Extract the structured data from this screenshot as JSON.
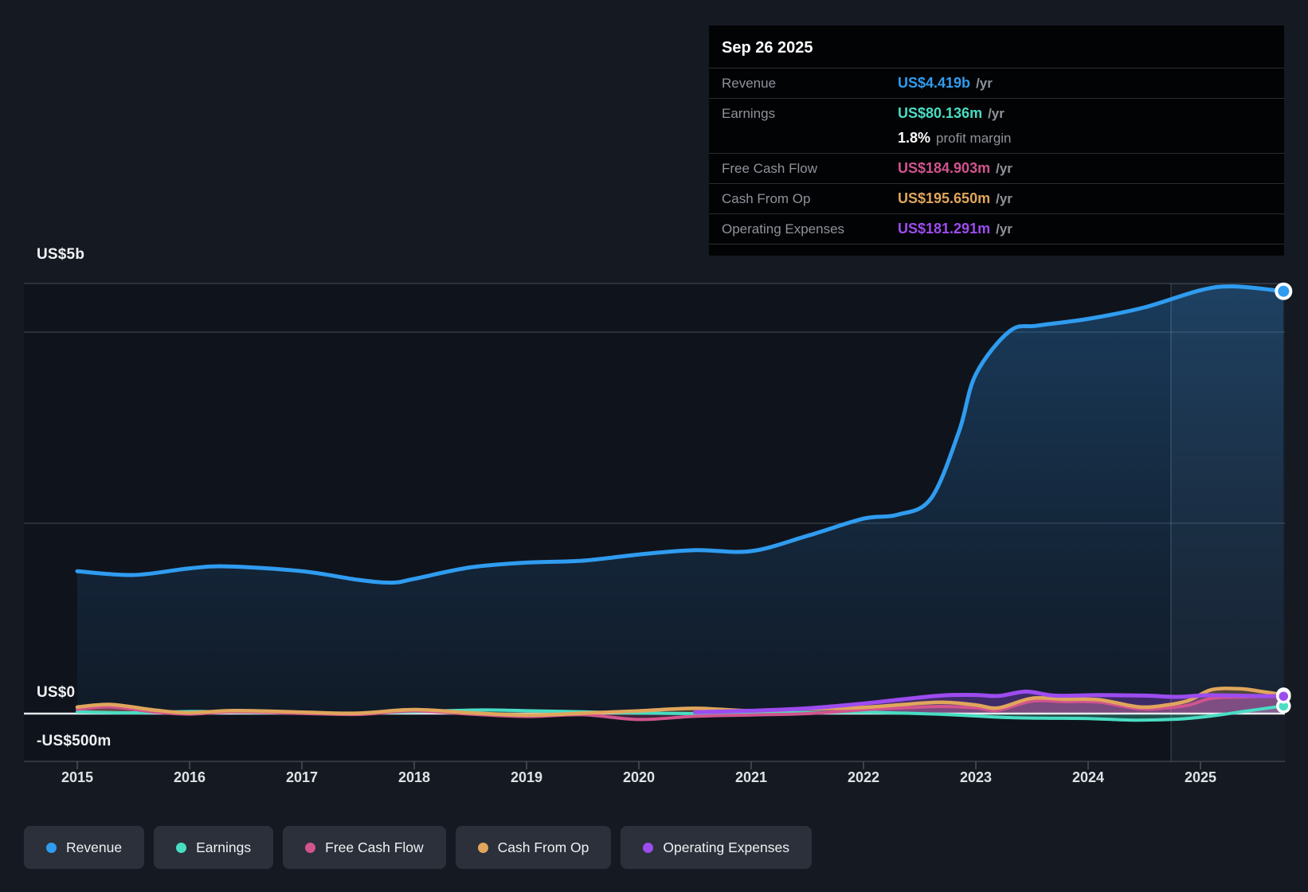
{
  "axis": {
    "y_labels": [
      "US$5b",
      "US$0",
      "-US$500m"
    ],
    "x_labels": [
      "2015",
      "2016",
      "2017",
      "2018",
      "2019",
      "2020",
      "2021",
      "2022",
      "2023",
      "2024",
      "2025"
    ]
  },
  "tooltip": {
    "date": "Sep 26 2025",
    "rows": [
      {
        "label": "Revenue",
        "value": "US$4.419b",
        "suffix": "/yr",
        "color": "#2f9cf0"
      },
      {
        "label": "Earnings",
        "value": "US$80.136m",
        "suffix": "/yr",
        "color": "#49ddc3"
      },
      {
        "label": "",
        "value": "1.8%",
        "suffix": "profit margin",
        "color": "#ffffff"
      },
      {
        "label": "Free Cash Flow",
        "value": "US$184.903m",
        "suffix": "/yr",
        "color": "#d1548e"
      },
      {
        "label": "Cash From Op",
        "value": "US$195.650m",
        "suffix": "/yr",
        "color": "#e0a65c"
      },
      {
        "label": "Operating Expenses",
        "value": "US$181.291m",
        "suffix": "/yr",
        "color": "#9d4cf0"
      }
    ]
  },
  "legend": {
    "items": [
      {
        "label": "Revenue",
        "color": "#2f9cf0"
      },
      {
        "label": "Earnings",
        "color": "#49ddc3"
      },
      {
        "label": "Free Cash Flow",
        "color": "#d1548e"
      },
      {
        "label": "Cash From Op",
        "color": "#e0a65c"
      },
      {
        "label": "Operating Expenses",
        "color": "#9d4cf0"
      }
    ]
  },
  "chart_data": {
    "type": "area",
    "title": "Earnings and revenue history",
    "x_unit": "year",
    "y_unit": "US$ millions",
    "x_range": [
      2015,
      2025.74
    ],
    "y_axis_ticks": [
      "US$5b",
      "US$0",
      "-US$500m"
    ],
    "grid": true,
    "legend_position": "bottom",
    "highlight_band_start": 2024.74,
    "last_point_date": "Sep 26 2025",
    "series": [
      {
        "name": "Revenue",
        "color": "#2f9cf0",
        "values": [
          [
            2015,
            1490
          ],
          [
            2015.5,
            1450
          ],
          [
            2016,
            1520
          ],
          [
            2016.35,
            1540
          ],
          [
            2017,
            1490
          ],
          [
            2017.5,
            1400
          ],
          [
            2017.8,
            1370
          ],
          [
            2018,
            1410
          ],
          [
            2018.5,
            1530
          ],
          [
            2019,
            1580
          ],
          [
            2019.5,
            1600
          ],
          [
            2020,
            1665
          ],
          [
            2020.5,
            1710
          ],
          [
            2021,
            1700
          ],
          [
            2021.5,
            1860
          ],
          [
            2022,
            2040
          ],
          [
            2022.3,
            2080
          ],
          [
            2022.6,
            2250
          ],
          [
            2022.85,
            2950
          ],
          [
            2023,
            3550
          ],
          [
            2023.3,
            4000
          ],
          [
            2023.55,
            4060
          ],
          [
            2024,
            4130
          ],
          [
            2024.5,
            4250
          ],
          [
            2025,
            4430
          ],
          [
            2025.3,
            4470
          ],
          [
            2025.74,
            4419
          ]
        ]
      },
      {
        "name": "Earnings",
        "color": "#49ddc3",
        "values": [
          [
            2015,
            18
          ],
          [
            2015.5,
            8
          ],
          [
            2016,
            22
          ],
          [
            2016.5,
            15
          ],
          [
            2017,
            8
          ],
          [
            2017.5,
            4
          ],
          [
            2018,
            20
          ],
          [
            2018.6,
            38
          ],
          [
            2019,
            30
          ],
          [
            2019.5,
            18
          ],
          [
            2020,
            5
          ],
          [
            2020.5,
            0
          ],
          [
            2021,
            5
          ],
          [
            2021.5,
            10
          ],
          [
            2022,
            15
          ],
          [
            2022.5,
            0
          ],
          [
            2022.75,
            -10
          ],
          [
            2023,
            -25
          ],
          [
            2023.3,
            -42
          ],
          [
            2023.6,
            -48
          ],
          [
            2024,
            -52
          ],
          [
            2024.4,
            -68
          ],
          [
            2024.8,
            -58
          ],
          [
            2025.1,
            -25
          ],
          [
            2025.4,
            25
          ],
          [
            2025.74,
            80.136
          ]
        ]
      },
      {
        "name": "Free Cash Flow",
        "color": "#d1548e",
        "values": [
          [
            2015,
            45
          ],
          [
            2015.3,
            70
          ],
          [
            2015.7,
            15
          ],
          [
            2016,
            -5
          ],
          [
            2016.4,
            18
          ],
          [
            2017,
            2
          ],
          [
            2017.5,
            -8
          ],
          [
            2018,
            28
          ],
          [
            2018.5,
            -5
          ],
          [
            2019,
            -30
          ],
          [
            2019.5,
            -12
          ],
          [
            2020,
            -62
          ],
          [
            2020.5,
            -28
          ],
          [
            2021,
            -15
          ],
          [
            2021.5,
            0
          ],
          [
            2022,
            40
          ],
          [
            2022.35,
            60
          ],
          [
            2022.7,
            75
          ],
          [
            2023,
            60
          ],
          [
            2023.2,
            35
          ],
          [
            2023.5,
            130
          ],
          [
            2023.8,
            125
          ],
          [
            2024.1,
            120
          ],
          [
            2024.45,
            50
          ],
          [
            2024.7,
            60
          ],
          [
            2024.9,
            90
          ],
          [
            2025.1,
            160
          ],
          [
            2025.4,
            175
          ],
          [
            2025.74,
            184.903
          ]
        ]
      },
      {
        "name": "Cash From Op",
        "color": "#e0a65c",
        "values": [
          [
            2015,
            68
          ],
          [
            2015.3,
            95
          ],
          [
            2015.7,
            35
          ],
          [
            2016,
            8
          ],
          [
            2016.4,
            32
          ],
          [
            2017,
            15
          ],
          [
            2017.5,
            4
          ],
          [
            2018,
            42
          ],
          [
            2018.5,
            8
          ],
          [
            2019,
            -15
          ],
          [
            2019.5,
            4
          ],
          [
            2020,
            28
          ],
          [
            2020.5,
            55
          ],
          [
            2021,
            30
          ],
          [
            2021.5,
            50
          ],
          [
            2022,
            65
          ],
          [
            2022.35,
            95
          ],
          [
            2022.7,
            118
          ],
          [
            2023,
            90
          ],
          [
            2023.2,
            60
          ],
          [
            2023.5,
            160
          ],
          [
            2023.8,
            150
          ],
          [
            2024.1,
            145
          ],
          [
            2024.45,
            70
          ],
          [
            2024.7,
            90
          ],
          [
            2024.9,
            140
          ],
          [
            2025.1,
            250
          ],
          [
            2025.35,
            260
          ],
          [
            2025.55,
            230
          ],
          [
            2025.74,
            195.65
          ]
        ]
      },
      {
        "name": "Operating Expenses",
        "color": "#9d4cf0",
        "values": [
          [
            2020.5,
            15
          ],
          [
            2021,
            30
          ],
          [
            2021.5,
            55
          ],
          [
            2022,
            105
          ],
          [
            2022.35,
            150
          ],
          [
            2022.7,
            190
          ],
          [
            2023,
            195
          ],
          [
            2023.2,
            185
          ],
          [
            2023.45,
            230
          ],
          [
            2023.7,
            188
          ],
          [
            2024.1,
            193
          ],
          [
            2024.5,
            188
          ],
          [
            2024.8,
            175
          ],
          [
            2025.05,
            192
          ],
          [
            2025.4,
            187
          ],
          [
            2025.74,
            181.291
          ]
        ]
      }
    ]
  }
}
